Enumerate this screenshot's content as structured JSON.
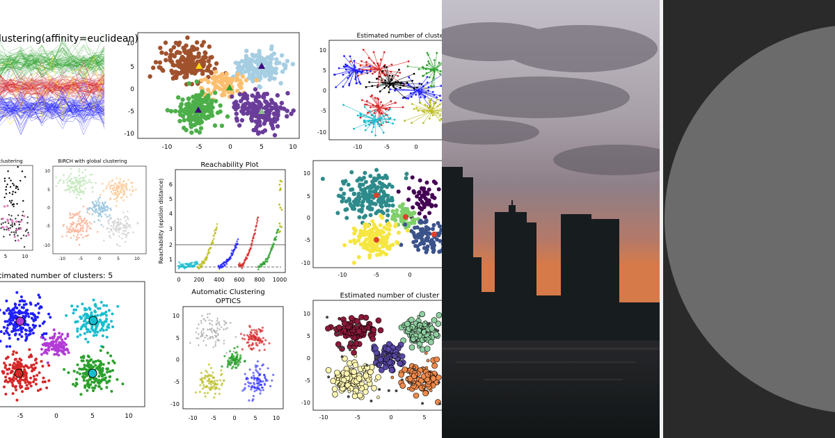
{
  "collage": {
    "titles": {
      "hier": "lustering(affinity=euclidean)",
      "kmeans_top": "Estimated number of cluste",
      "birch_left": "clustering",
      "birch": "BIRCH with global clustering",
      "reach": "Reachability Plot",
      "reach_ylabel": "Reachability (epsilon distance)",
      "dbscan": "timated number of clusters: 5",
      "optics_line1": "Automatic Clustering",
      "optics_line2": "OPTICS",
      "bottom_right": "Estimated number of cluster"
    },
    "ticks": {
      "top_mid_x": [
        "-10",
        "-5",
        "0",
        "5",
        "10"
      ],
      "top_mid_y": [
        "10",
        "5",
        "0",
        "-5",
        "-10"
      ],
      "top_right_x": [
        "-10",
        "-5",
        "0"
      ],
      "top_right_y": [
        "10",
        "5",
        "0",
        "-5",
        "-10"
      ],
      "birch_x": [
        "-10",
        "-5",
        "0",
        "5",
        "10"
      ],
      "birch_y": [
        "10",
        "5",
        "0",
        "-5",
        "-10"
      ],
      "birch_left_x": [
        "5",
        "10"
      ],
      "reach_x": [
        "0",
        "200",
        "400",
        "600",
        "800",
        "1000"
      ],
      "reach_y": [
        "6",
        "5",
        "4",
        "3",
        "2",
        "1"
      ],
      "mid_right_x": [
        "-10",
        "-5",
        "0"
      ],
      "mid_right_y": [
        "10",
        "5",
        "0",
        "-5",
        "-10"
      ],
      "dbscan_x": [
        "-5",
        "0",
        "5",
        "10"
      ],
      "optics_x": [
        "-10",
        "-5",
        "0",
        "5",
        "10"
      ],
      "optics_y": [
        "10",
        "5",
        "0",
        "-5",
        "-10"
      ],
      "bottom_right_x": [
        "-10",
        "-5",
        "0",
        "5"
      ],
      "bottom_right_y": [
        "10",
        "5",
        "0",
        "-5",
        "-10"
      ]
    }
  },
  "colors": {
    "divider": "#f2f2f2",
    "disc_panel_bg": "#2a2a2a",
    "disc": "#6b6b6b",
    "sky_top": "#c9c6cf",
    "sky_bottom": "#d77a49",
    "silhouette": "#171c1f"
  },
  "icons": {
    "disc": "large-gray-circle",
    "skyline": "city-skyline-silhouette"
  }
}
